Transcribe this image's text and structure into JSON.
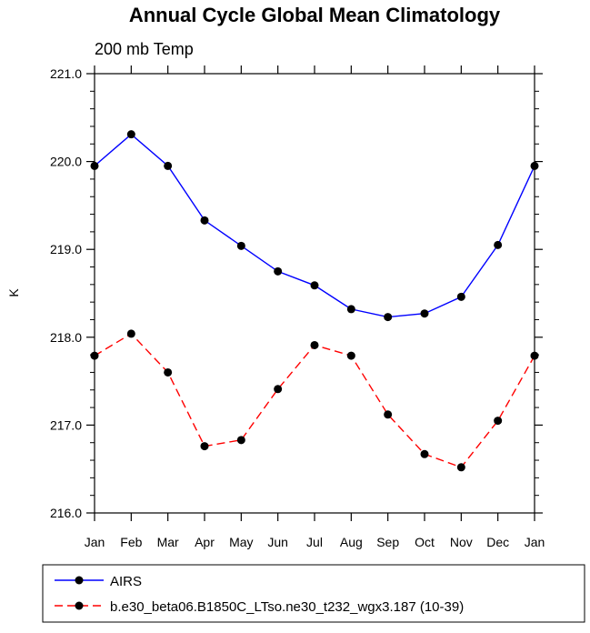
{
  "chart_data": {
    "type": "line",
    "title": "Annual Cycle Global Mean Climatology",
    "subtitle": "200 mb Temp",
    "xlabel": "",
    "ylabel": "K",
    "categories": [
      "Jan",
      "Feb",
      "Mar",
      "Apr",
      "May",
      "Jun",
      "Jul",
      "Aug",
      "Sep",
      "Oct",
      "Nov",
      "Dec",
      "Jan"
    ],
    "ylim": [
      216.0,
      221.0
    ],
    "yticks": [
      "216.0",
      "217.0",
      "218.0",
      "219.0",
      "220.0",
      "221.0"
    ],
    "grid": false,
    "legend_position": "bottom",
    "series": [
      {
        "name": "AIRS",
        "color": "#0000ff",
        "line_style": "solid",
        "marker": "dot",
        "values": [
          219.95,
          220.31,
          219.95,
          219.33,
          219.04,
          218.75,
          218.59,
          218.32,
          218.23,
          218.27,
          218.46,
          219.05,
          219.95
        ]
      },
      {
        "name": "b.e30_beta06.B1850C_LTso.ne30_t232_wgx3.187 (10-39)",
        "color": "#ff0000",
        "line_style": "dashed",
        "marker": "dot",
        "values": [
          217.79,
          218.04,
          217.6,
          216.76,
          216.83,
          217.41,
          217.91,
          217.79,
          217.12,
          216.67,
          216.52,
          217.05,
          217.79
        ]
      }
    ]
  }
}
